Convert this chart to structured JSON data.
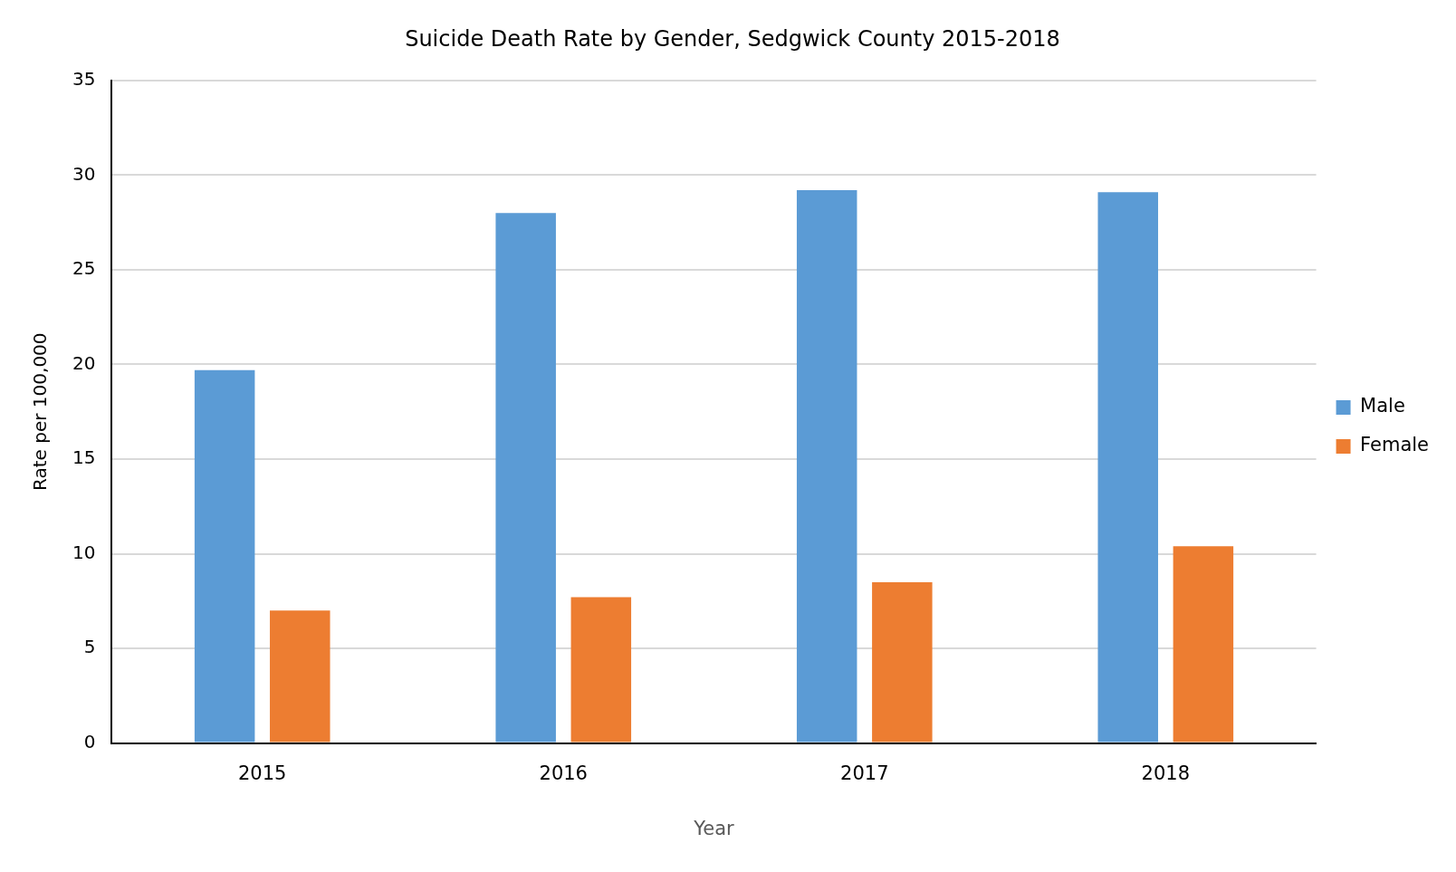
{
  "chart_data": {
    "type": "bar",
    "title": "Suicide Death Rate by Gender, Sedgwick County 2015-2018",
    "xlabel": "Year",
    "ylabel": "Rate per 100,000",
    "categories": [
      "2015",
      "2016",
      "2017",
      "2018"
    ],
    "series": [
      {
        "name": "Male",
        "color": "#5b9bd5",
        "values": [
          19.7,
          28.0,
          29.2,
          29.1
        ]
      },
      {
        "name": "Female",
        "color": "#ed7d31",
        "values": [
          7.0,
          7.7,
          8.5,
          10.4
        ]
      }
    ],
    "ylim": [
      0,
      35
    ],
    "yticks": [
      0,
      5,
      10,
      15,
      20,
      25,
      30,
      35
    ],
    "grid": "y",
    "legend": "right"
  }
}
